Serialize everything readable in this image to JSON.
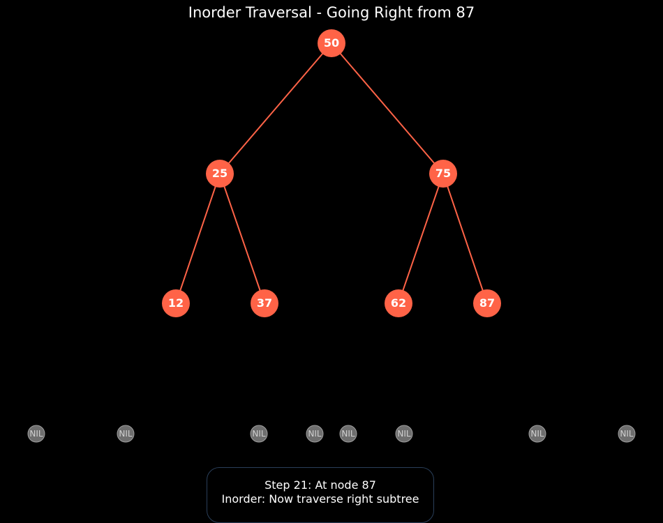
{
  "title": "Inorder Traversal - Going Right from 87",
  "colors": {
    "background": "#000000",
    "node_fill": "#ff6347",
    "edge": "#ff6347",
    "node_text": "#ffffff",
    "nil_fill": "#6e6e6e",
    "nil_stroke": "#a0a0a0",
    "nil_text": "#d0d0d0"
  },
  "tree": {
    "nodes": [
      {
        "id": "n50",
        "label": "50"
      },
      {
        "id": "n25",
        "label": "25"
      },
      {
        "id": "n75",
        "label": "75"
      },
      {
        "id": "n12",
        "label": "12"
      },
      {
        "id": "n37",
        "label": "37"
      },
      {
        "id": "n62",
        "label": "62"
      },
      {
        "id": "n87",
        "label": "87"
      }
    ],
    "edges": [
      {
        "from": "n50",
        "to": "n25"
      },
      {
        "from": "n50",
        "to": "n75"
      },
      {
        "from": "n25",
        "to": "n12"
      },
      {
        "from": "n25",
        "to": "n37"
      },
      {
        "from": "n75",
        "to": "n62"
      },
      {
        "from": "n75",
        "to": "n87"
      }
    ],
    "nil_label": "NIL",
    "nil_count": 8
  },
  "status": {
    "line1": "Step 21: At node 87",
    "line2": "Inorder: Now traverse right subtree"
  }
}
